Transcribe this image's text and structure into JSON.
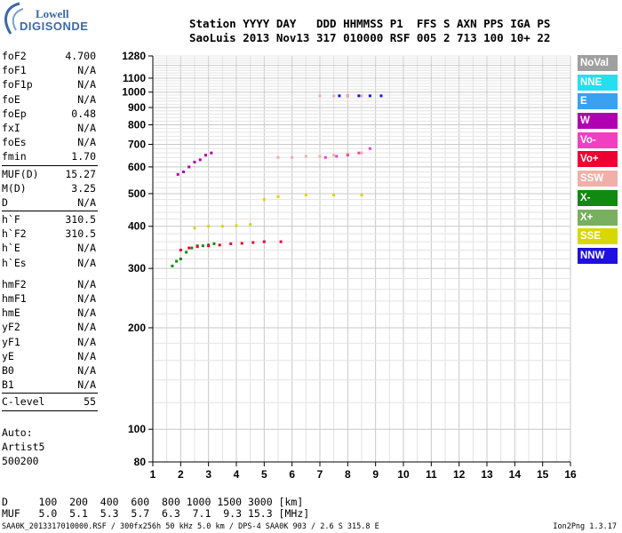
{
  "logo": {
    "line1": "Lowell",
    "line2": "DIGISONDE"
  },
  "header": {
    "row1": "Station YYYY DAY   DDD HHMMSS P1  FFS S AXN PPS IGA PS",
    "row2": "SaoLuis 2013 Nov13 317 010000 RSF 005 2 713 100 10+ 22"
  },
  "params": [
    {
      "name": "foF2",
      "value": "4.700"
    },
    {
      "name": "foF1",
      "value": "N/A"
    },
    {
      "name": "foF1p",
      "value": "N/A"
    },
    {
      "name": "foE",
      "value": "N/A"
    },
    {
      "name": "foEp",
      "value": "0.48"
    },
    {
      "name": "fxI",
      "value": "N/A"
    },
    {
      "name": "foEs",
      "value": "N/A"
    },
    {
      "name": "fmin",
      "value": "1.70"
    },
    {
      "sep": true
    },
    {
      "name": "MUF(D)",
      "value": "15.27"
    },
    {
      "name": "M(D)",
      "value": "3.25"
    },
    {
      "name": "D",
      "value": "N/A"
    },
    {
      "sep": true
    },
    {
      "name": "h`F",
      "value": "310.5"
    },
    {
      "name": "h`F2",
      "value": "310.5"
    },
    {
      "name": "h`E",
      "value": "N/A"
    },
    {
      "name": "h`Es",
      "value": "N/A"
    },
    {
      "gap": true
    },
    {
      "name": "hmF2",
      "value": "N/A"
    },
    {
      "name": "hmF1",
      "value": "N/A"
    },
    {
      "name": "hmE",
      "value": "N/A"
    },
    {
      "name": "yF2",
      "value": "N/A"
    },
    {
      "name": "yF1",
      "value": "N/A"
    },
    {
      "name": "yE",
      "value": "N/A"
    },
    {
      "name": "B0",
      "value": "N/A"
    },
    {
      "name": "B1",
      "value": "N/A"
    },
    {
      "sep": true
    },
    {
      "name": "C-level",
      "value": "55"
    },
    {
      "sep": true
    }
  ],
  "auto": {
    "line1": "Auto:",
    "line2": "Artist5",
    "line3": "500200"
  },
  "legend": [
    {
      "label": "NoVal",
      "color": "#a0a0a0"
    },
    {
      "label": "NNE",
      "color": "#22e0f0"
    },
    {
      "label": "E",
      "color": "#3aa0f0"
    },
    {
      "label": "W",
      "color": "#b000b0"
    },
    {
      "label": "Vo-",
      "color": "#f040c0"
    },
    {
      "label": "Vo+",
      "color": "#ee0030"
    },
    {
      "label": "SSW",
      "color": "#f0b0a8"
    },
    {
      "label": "X-",
      "color": "#108a10"
    },
    {
      "label": "X+",
      "color": "#78b060"
    },
    {
      "label": "SSE",
      "color": "#d8d800"
    },
    {
      "label": "NNW",
      "color": "#2010e0"
    }
  ],
  "bottom": {
    "row1": "D     100  200  400  600  800 1000 1500 3000 [km]",
    "row2": "MUF   5.0  5.1  5.3  5.7  6.3  7.1  9.3 15.3 [MHz]"
  },
  "footer": {
    "left": "SAA0K_2013317010000.RSF / 300fx256h 50 kHz 5.0 km / DPS-4 SAA0K 903 / 2.6 S 315.8 E",
    "right": "Ion2Png 1.3.17"
  },
  "chart_data": {
    "type": "scatter",
    "title": "",
    "xlabel": "",
    "ylabel": "",
    "xlim": [
      1,
      16
    ],
    "ylim": [
      80,
      1280
    ],
    "y_scale": "log",
    "x_ticks": [
      "1",
      "2",
      "3",
      "4",
      "5",
      "6",
      "7",
      "8",
      "9",
      "10",
      "11",
      "12",
      "13",
      "14",
      "15",
      "16"
    ],
    "y_ticks": [
      "80",
      "100",
      "200",
      "300",
      "400",
      "500",
      "600",
      "700",
      "800",
      "900",
      "1000",
      "1100",
      "1280"
    ],
    "grid": true,
    "traces": [
      {
        "name": "X-",
        "color": "#108a10",
        "x": [
          1.7,
          1.85,
          2.0,
          2.2,
          2.4,
          2.6,
          2.8,
          3.0,
          3.2
        ],
        "y": [
          305,
          315,
          320,
          335,
          345,
          350,
          350,
          352,
          355
        ]
      },
      {
        "name": "Vo+",
        "color": "#ee0030",
        "x": [
          2.0,
          2.3,
          2.6,
          3.0,
          3.4,
          3.8,
          4.2,
          4.6,
          5.0,
          5.6
        ],
        "y": [
          340,
          345,
          348,
          350,
          352,
          355,
          356,
          358,
          360,
          360
        ]
      },
      {
        "name": "SSE",
        "color": "#d8d800",
        "x": [
          2.5,
          3.0,
          3.5,
          4.0,
          4.5,
          5.0,
          5.5,
          6.5,
          7.5,
          8.5
        ],
        "y": [
          395,
          400,
          400,
          402,
          405,
          480,
          490,
          495,
          495,
          495
        ]
      },
      {
        "name": "W",
        "color": "#b000b0",
        "x": [
          1.9,
          2.1,
          2.3,
          2.5,
          2.7,
          2.9,
          3.1
        ],
        "y": [
          570,
          580,
          600,
          620,
          630,
          650,
          660
        ]
      },
      {
        "name": "SSW",
        "color": "#f0b0a8",
        "x": [
          5.5,
          6.0,
          6.5,
          7.0,
          7.5,
          8.0,
          8.5
        ],
        "y": [
          640,
          640,
          645,
          645,
          650,
          655,
          660
        ]
      },
      {
        "name": "Vo-",
        "color": "#f040c0",
        "x": [
          7.2,
          7.6,
          8.0,
          8.4,
          8.8
        ],
        "y": [
          640,
          645,
          650,
          660,
          680
        ]
      },
      {
        "name": "NNW",
        "color": "#2010e0",
        "x": [
          7.7,
          8.0,
          8.4,
          8.8,
          9.2
        ],
        "y": [
          975,
          975,
          975,
          975,
          975
        ]
      },
      {
        "name": "SSW",
        "color": "#f0b0a8",
        "x": [
          7.0,
          7.5,
          8.0,
          8.5
        ],
        "y": [
          975,
          975,
          975,
          975
        ]
      }
    ]
  }
}
